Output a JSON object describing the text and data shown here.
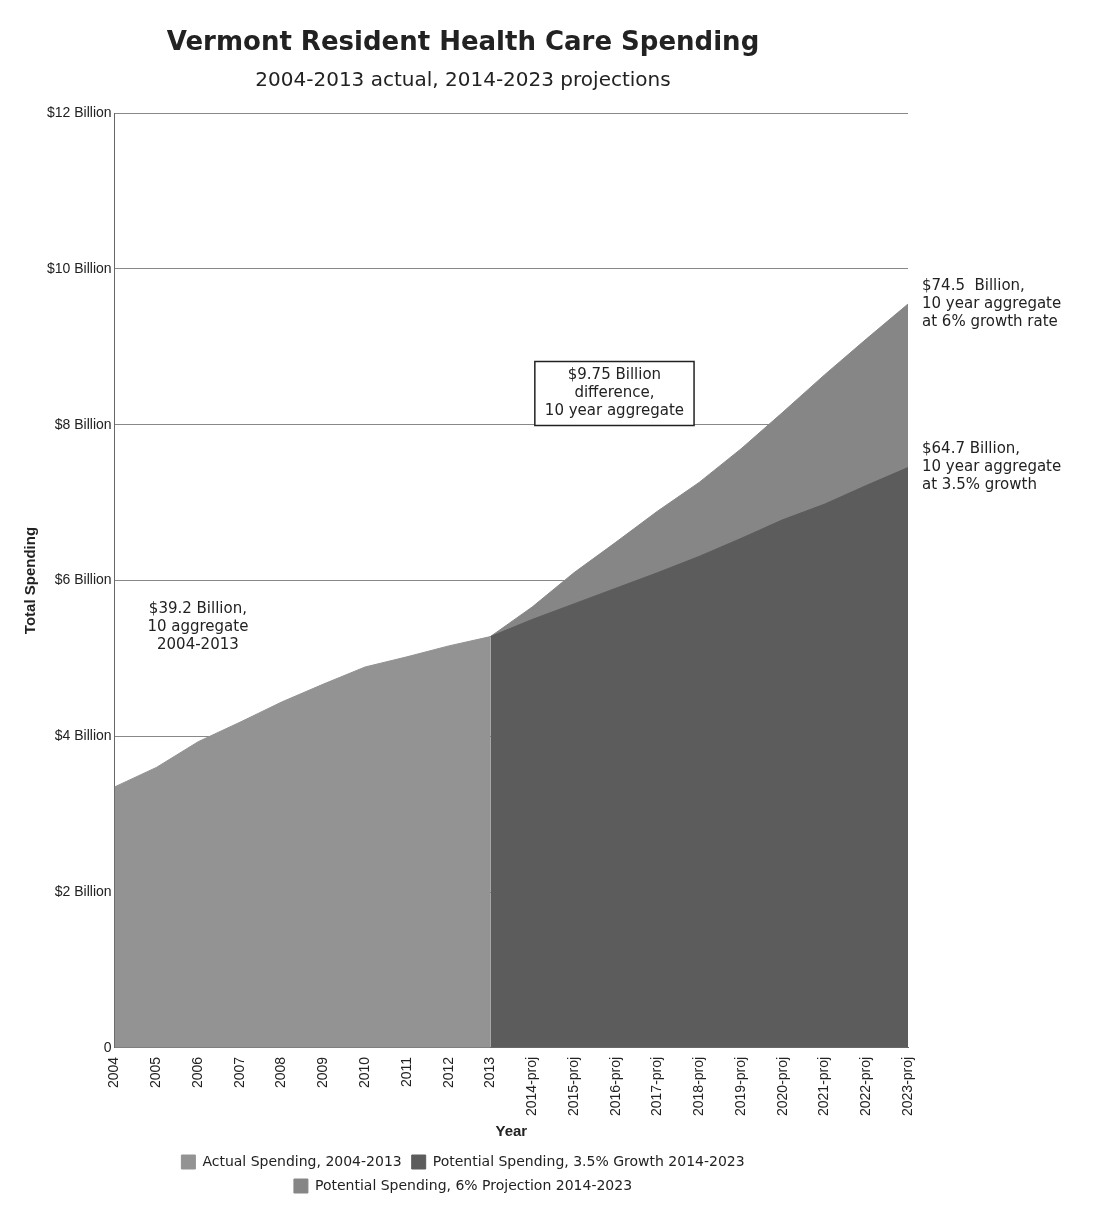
{
  "chart_data": {
    "type": "area",
    "title": "Vermont Resident Health Care Spending",
    "subtitle": "2004-2013 actual, 2014-2023 projections",
    "xlabel": "Year",
    "ylabel": "Total Spending",
    "categories": [
      "2004",
      "2005",
      "2006",
      "2007",
      "2008",
      "2009",
      "2010",
      "2011",
      "2012",
      "2013",
      "2014-proj",
      "2015-proj",
      "2016-proj",
      "2017-proj",
      "2018-proj",
      "2019-proj",
      "2020-proj",
      "2021-proj",
      "2022-proj",
      "2023-proj"
    ],
    "series": [
      {
        "name": "Actual Spending, 2004-2013",
        "color": "#939393",
        "values": [
          3.35,
          3.6,
          3.93,
          4.18,
          4.44,
          4.67,
          4.89,
          5.02,
          5.16,
          5.28,
          null,
          null,
          null,
          null,
          null,
          null,
          null,
          null,
          null,
          null
        ]
      },
      {
        "name": "Potential Spending, 3.5% Growth 2014-2023",
        "color": "#5c5c5c",
        "values": [
          null,
          null,
          null,
          null,
          null,
          null,
          null,
          null,
          null,
          5.28,
          5.5,
          5.7,
          5.9,
          6.1,
          6.31,
          6.54,
          6.78,
          6.98,
          7.22,
          7.45
        ]
      },
      {
        "name": "Potential Spending, 6% Projection 2014-2023",
        "color": "#868686",
        "values": [
          null,
          null,
          null,
          null,
          null,
          null,
          null,
          null,
          null,
          5.28,
          5.66,
          6.1,
          6.49,
          6.89,
          7.26,
          7.69,
          8.16,
          8.64,
          9.1,
          9.55
        ]
      }
    ],
    "ylim": [
      0,
      12
    ],
    "yticks": [
      {
        "value": 0,
        "label": "0"
      },
      {
        "value": 2,
        "label": "$2 Billion"
      },
      {
        "value": 4,
        "label": "$4 Billion"
      },
      {
        "value": 6,
        "label": "$6 Billion"
      },
      {
        "value": 8,
        "label": "$8 Billion"
      },
      {
        "value": 10,
        "label": "$10 Billion"
      },
      {
        "value": 12,
        "label": "$12 Billion"
      }
    ],
    "grid": "y",
    "legend": "bottom",
    "annotations": [
      "$39.2 Billion,\n10 aggregate\n2004-2013",
      "$9.75 Billion\ndifference,\n10 year aggregate",
      {
        "text": "$74.5  Billion,\n10 year aggregate\nat 6% growth rate",
        "x": "2023-proj",
        "y": 9.55
      },
      {
        "text": "$64.7 Billion,\n10 year aggregate\nat 3.5% growth",
        "x": "2023-proj",
        "y": 7.45
      }
    ]
  }
}
